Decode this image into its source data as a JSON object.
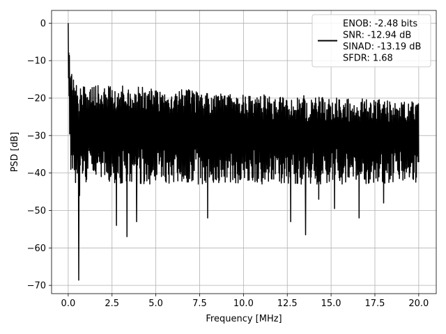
{
  "chart_data": {
    "type": "line",
    "title": "",
    "xlabel": "Frequency [MHz]",
    "ylabel": "PSD [dB]",
    "xlim": [
      -0.95,
      21.0
    ],
    "ylim": [
      -72.2,
      3.4
    ],
    "xticks": [
      0.0,
      2.5,
      5.0,
      7.5,
      10.0,
      12.5,
      15.0,
      17.5,
      20.0
    ],
    "xtick_labels": [
      "0.0",
      "2.5",
      "5.0",
      "7.5",
      "10.0",
      "12.5",
      "15.0",
      "17.5",
      "20.0"
    ],
    "yticks": [
      0,
      -10,
      -20,
      -30,
      -40,
      -50,
      -60,
      -70
    ],
    "ytick_labels": [
      "0",
      "−10",
      "−20",
      "−30",
      "−40",
      "−50",
      "−60",
      "−70"
    ],
    "grid": true,
    "legend_position": "top-right",
    "line_color": "#000000",
    "series": [
      {
        "name": "ENOB: -2.48 bits\nSNR: -12.94 dB\nSINAD: -13.19 dB\nSFDR: 1.68",
        "legend_lines": [
          "ENOB: -2.48 bits",
          "SNR: -12.94 dB",
          "SINAD: -13.19 dB",
          "SFDR: 1.68"
        ],
        "x_range": [
          0.0,
          20.0
        ],
        "n_points": 1200,
        "noise_floor_db": -29.0,
        "upper_envelope_db": [
          [
            0.0,
            0.0
          ],
          [
            0.08,
            -10.0
          ],
          [
            0.5,
            -17.0
          ],
          [
            2.0,
            -16.5
          ],
          [
            5.0,
            -17.0
          ],
          [
            10.0,
            -19.0
          ],
          [
            15.0,
            -19.5
          ],
          [
            20.0,
            -21.0
          ]
        ],
        "notable_minima": [
          {
            "x": 0.6,
            "y": -68.6
          },
          {
            "x": 0.65,
            "y": -46.0
          },
          {
            "x": 2.75,
            "y": -54.0
          },
          {
            "x": 3.35,
            "y": -57.0
          },
          {
            "x": 3.9,
            "y": -53.0
          },
          {
            "x": 7.95,
            "y": -52.0
          },
          {
            "x": 13.55,
            "y": -56.5
          },
          {
            "x": 12.7,
            "y": -53.0
          },
          {
            "x": 14.3,
            "y": -47.0
          },
          {
            "x": 15.2,
            "y": -49.5
          },
          {
            "x": 16.6,
            "y": -52.0
          },
          {
            "x": 18.0,
            "y": -48.0
          }
        ]
      }
    ]
  }
}
